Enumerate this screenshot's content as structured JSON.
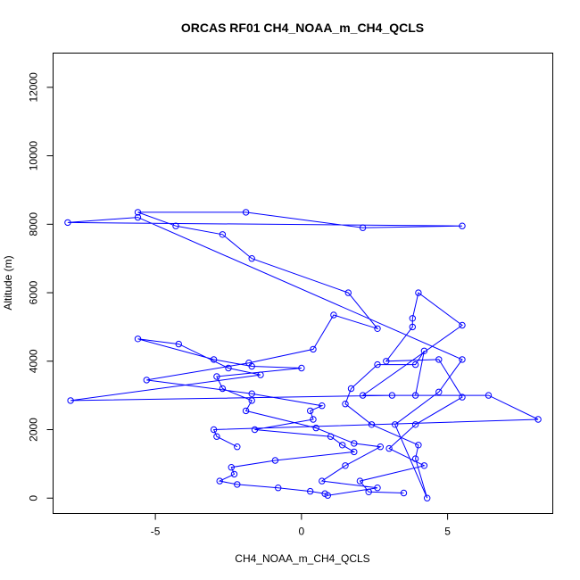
{
  "chart_data": {
    "type": "line",
    "title": "ORCAS RF01 CH4_NOAA_m_CH4_QCLS",
    "xlabel": "CH4_NOAA_m_CH4_QCLS",
    "ylabel": "Altitude (m)",
    "xlim": [
      -8.5,
      8.6
    ],
    "ylim": [
      -450,
      13000
    ],
    "xticks": [
      -5,
      0,
      5
    ],
    "yticks": [
      0,
      2000,
      4000,
      6000,
      8000,
      10000,
      12000
    ],
    "xtick_labels": [
      "-5",
      "0",
      "5"
    ],
    "ytick_labels": [
      "0",
      "2000",
      "4000",
      "6000",
      "8000",
      "10000",
      "12000"
    ],
    "grid": false,
    "series": [
      {
        "color": "#0000ff",
        "marker": "open-circle",
        "x": [
          3.5,
          2.3,
          2.0,
          4.2,
          3.0,
          3.9,
          5.5,
          4.7,
          2.9,
          3.8,
          3.8,
          4.0,
          5.5,
          2.1,
          3.9,
          4.2,
          3.9,
          2.6,
          1.7,
          1.5,
          2.4,
          4.0,
          3.9,
          4.3,
          3.2,
          4.7,
          5.5,
          -5.6,
          -8.0,
          5.5,
          2.1,
          -1.9,
          -5.6,
          -4.3,
          -2.7,
          -1.7,
          1.6,
          2.6,
          1.1,
          0.4,
          -1.8,
          -5.3,
          -1.7,
          0.7,
          0.3,
          0.4,
          -1.6,
          1.0,
          1.4,
          1.8,
          -0.9,
          -2.4,
          -2.3,
          -2.8,
          -2.2,
          -0.8,
          0.3,
          0.8,
          0.9,
          2.6,
          0.7,
          1.5,
          2.7,
          1.8,
          0.5,
          -1.9,
          -1.7,
          -2.7,
          -2.9,
          0.0,
          -1.7,
          -3.0,
          -5.6,
          -4.2,
          -2.5,
          -1.4,
          -7.9,
          3.1,
          6.4,
          8.1,
          -3.0,
          -2.9,
          -2.2
        ],
        "y": [
          150,
          180,
          500,
          950,
          1450,
          2150,
          2950,
          4050,
          4000,
          5000,
          5250,
          6000,
          5050,
          3000,
          3000,
          4300,
          3900,
          3900,
          3200,
          2750,
          2150,
          1550,
          1150,
          0,
          2150,
          3100,
          4050,
          8200,
          8050,
          7950,
          7900,
          8350,
          8350,
          7950,
          7700,
          7000,
          6000,
          4950,
          5350,
          4350,
          3950,
          3450,
          3050,
          2700,
          2550,
          2300,
          2000,
          1800,
          1550,
          1350,
          1100,
          900,
          700,
          500,
          400,
          300,
          200,
          130,
          80,
          300,
          500,
          950,
          1500,
          1600,
          2050,
          2550,
          2850,
          3200,
          3550,
          3800,
          3850,
          4050,
          4650,
          4500,
          3800,
          3600,
          2850,
          3000,
          3000,
          2300,
          2000,
          1800,
          1500
        ]
      }
    ]
  }
}
